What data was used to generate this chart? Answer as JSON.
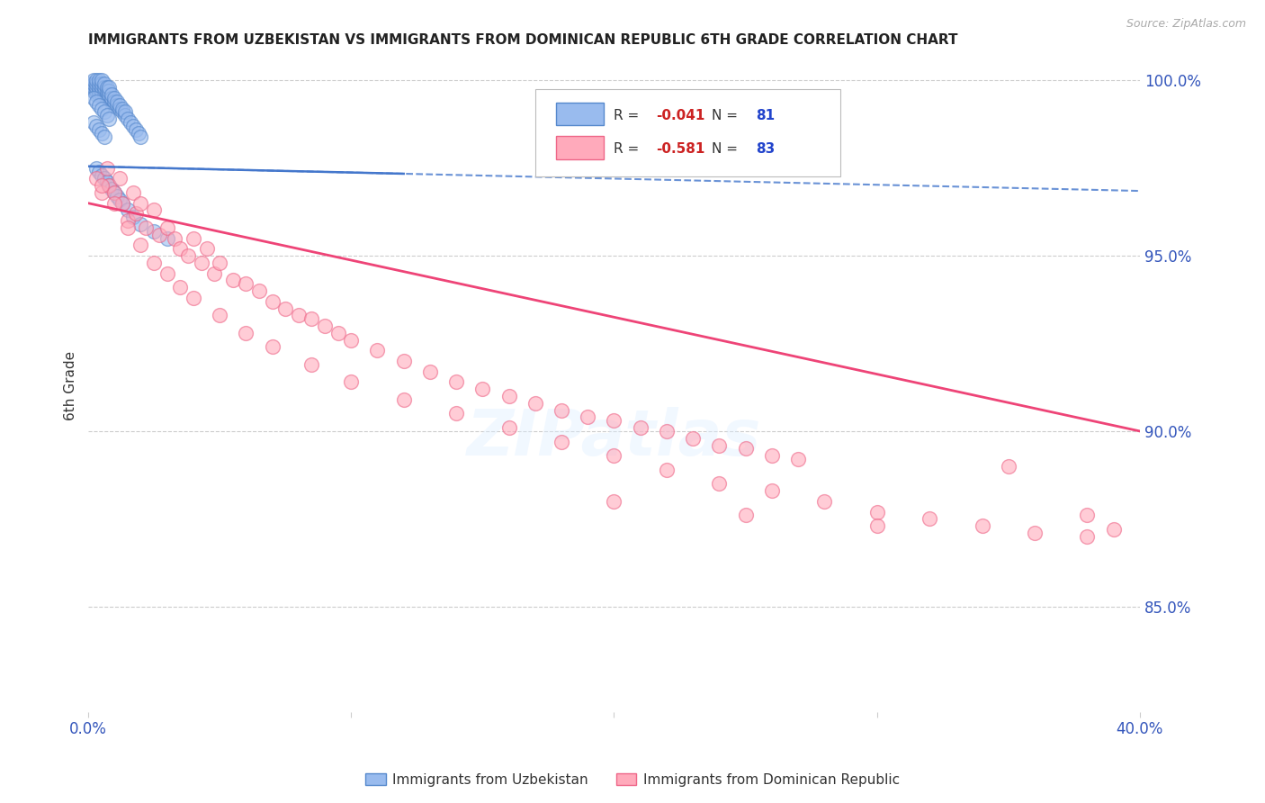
{
  "title": "IMMIGRANTS FROM UZBEKISTAN VS IMMIGRANTS FROM DOMINICAN REPUBLIC 6TH GRADE CORRELATION CHART",
  "source_text": "Source: ZipAtlas.com",
  "ylabel": "6th Grade",
  "legend_label1": "Immigrants from Uzbekistan",
  "legend_label2": "Immigrants from Dominican Republic",
  "r1": -0.041,
  "n1": 81,
  "r2": -0.581,
  "n2": 83,
  "x_min": 0.0,
  "x_max": 0.4,
  "y_min": 0.82,
  "y_max": 1.006,
  "y_ticks": [
    0.85,
    0.9,
    0.95,
    1.0
  ],
  "y_tick_labels": [
    "85.0%",
    "90.0%",
    "95.0%",
    "100.0%"
  ],
  "x_ticks": [
    0.0,
    0.1,
    0.2,
    0.3,
    0.4
  ],
  "x_tick_labels": [
    "0.0%",
    "",
    "",
    "",
    "40.0%"
  ],
  "color_uzbek_face": "#99BBEE",
  "color_uzbek_edge": "#5588CC",
  "color_dr_face": "#FFAABB",
  "color_dr_edge": "#EE6688",
  "color_uzbek_line_solid": "#4477CC",
  "color_dr_line": "#EE4477",
  "color_axis_labels": "#3355BB",
  "color_grid": "#CCCCCC",
  "background_color": "#FFFFFF",
  "watermark_text": "ZIPatlas",
  "uzbek_x": [
    0.001,
    0.001,
    0.002,
    0.002,
    0.002,
    0.002,
    0.003,
    0.003,
    0.003,
    0.003,
    0.003,
    0.004,
    0.004,
    0.004,
    0.004,
    0.004,
    0.005,
    0.005,
    0.005,
    0.005,
    0.005,
    0.006,
    0.006,
    0.006,
    0.006,
    0.007,
    0.007,
    0.007,
    0.007,
    0.008,
    0.008,
    0.008,
    0.008,
    0.009,
    0.009,
    0.009,
    0.01,
    0.01,
    0.01,
    0.011,
    0.011,
    0.012,
    0.012,
    0.013,
    0.013,
    0.014,
    0.014,
    0.015,
    0.016,
    0.017,
    0.018,
    0.019,
    0.02,
    0.002,
    0.003,
    0.004,
    0.005,
    0.006,
    0.007,
    0.008,
    0.002,
    0.003,
    0.004,
    0.005,
    0.006,
    0.003,
    0.004,
    0.005,
    0.006,
    0.007,
    0.008,
    0.009,
    0.01,
    0.011,
    0.012,
    0.013,
    0.015,
    0.017,
    0.02,
    0.025,
    0.03
  ],
  "uzbek_y": [
    0.998,
    0.999,
    0.997,
    0.998,
    0.999,
    1.0,
    0.996,
    0.997,
    0.998,
    0.999,
    1.0,
    0.996,
    0.997,
    0.998,
    0.999,
    1.0,
    0.996,
    0.997,
    0.998,
    0.999,
    1.0,
    0.996,
    0.997,
    0.998,
    0.999,
    0.995,
    0.996,
    0.997,
    0.998,
    0.995,
    0.996,
    0.997,
    0.998,
    0.994,
    0.995,
    0.996,
    0.993,
    0.994,
    0.995,
    0.993,
    0.994,
    0.992,
    0.993,
    0.991,
    0.992,
    0.99,
    0.991,
    0.989,
    0.988,
    0.987,
    0.986,
    0.985,
    0.984,
    0.995,
    0.994,
    0.993,
    0.992,
    0.991,
    0.99,
    0.989,
    0.988,
    0.987,
    0.986,
    0.985,
    0.984,
    0.975,
    0.974,
    0.973,
    0.972,
    0.971,
    0.97,
    0.969,
    0.968,
    0.967,
    0.966,
    0.965,
    0.963,
    0.961,
    0.959,
    0.957,
    0.955
  ],
  "dr_x": [
    0.003,
    0.005,
    0.007,
    0.008,
    0.01,
    0.012,
    0.013,
    0.015,
    0.017,
    0.018,
    0.02,
    0.022,
    0.025,
    0.027,
    0.03,
    0.033,
    0.035,
    0.038,
    0.04,
    0.043,
    0.045,
    0.048,
    0.05,
    0.055,
    0.06,
    0.065,
    0.07,
    0.075,
    0.08,
    0.085,
    0.09,
    0.095,
    0.1,
    0.11,
    0.12,
    0.13,
    0.14,
    0.15,
    0.16,
    0.17,
    0.18,
    0.19,
    0.2,
    0.21,
    0.22,
    0.23,
    0.24,
    0.25,
    0.26,
    0.27,
    0.005,
    0.01,
    0.015,
    0.02,
    0.025,
    0.03,
    0.035,
    0.04,
    0.05,
    0.06,
    0.07,
    0.085,
    0.1,
    0.12,
    0.14,
    0.16,
    0.18,
    0.2,
    0.22,
    0.24,
    0.26,
    0.28,
    0.3,
    0.32,
    0.34,
    0.36,
    0.38,
    0.2,
    0.25,
    0.3,
    0.35,
    0.38,
    0.39
  ],
  "dr_y": [
    0.972,
    0.968,
    0.975,
    0.97,
    0.968,
    0.972,
    0.965,
    0.96,
    0.968,
    0.962,
    0.965,
    0.958,
    0.963,
    0.956,
    0.958,
    0.955,
    0.952,
    0.95,
    0.955,
    0.948,
    0.952,
    0.945,
    0.948,
    0.943,
    0.942,
    0.94,
    0.937,
    0.935,
    0.933,
    0.932,
    0.93,
    0.928,
    0.926,
    0.923,
    0.92,
    0.917,
    0.914,
    0.912,
    0.91,
    0.908,
    0.906,
    0.904,
    0.903,
    0.901,
    0.9,
    0.898,
    0.896,
    0.895,
    0.893,
    0.892,
    0.97,
    0.965,
    0.958,
    0.953,
    0.948,
    0.945,
    0.941,
    0.938,
    0.933,
    0.928,
    0.924,
    0.919,
    0.914,
    0.909,
    0.905,
    0.901,
    0.897,
    0.893,
    0.889,
    0.885,
    0.883,
    0.88,
    0.877,
    0.875,
    0.873,
    0.871,
    0.87,
    0.88,
    0.876,
    0.873,
    0.89,
    0.876,
    0.872
  ]
}
